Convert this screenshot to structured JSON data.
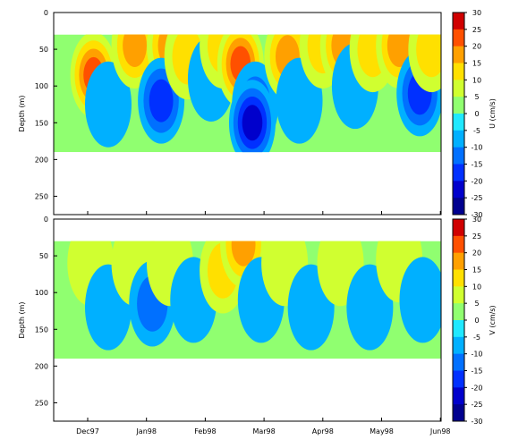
{
  "chart_data": [
    {
      "type": "heatmap",
      "panel": "top",
      "xlabel": "",
      "ylabel": "Depth (m)",
      "ylim": [
        0,
        275
      ],
      "y_reversed": true,
      "yticks": [
        "0",
        "50",
        "100",
        "150",
        "200",
        "250"
      ],
      "xticks": [
        "Dec97",
        "Jan98",
        "Feb98",
        "Mar98",
        "Apr98",
        "May98",
        "Jun98"
      ],
      "data_depth_range": [
        30,
        190
      ],
      "colorbar": {
        "label": "U (cm/s)",
        "min": -30,
        "max": 30,
        "step": 5,
        "ticks": [
          "30",
          "25",
          "20",
          "15",
          "10",
          "5",
          "0",
          "-5",
          "-10",
          "-15",
          "-20",
          "-25",
          "-30"
        ]
      },
      "features": [
        {
          "month_index": 0.1,
          "depth": 85,
          "value": 22
        },
        {
          "month_index": 0.35,
          "depth": 125,
          "value": -5
        },
        {
          "month_index": 0.8,
          "depth": 45,
          "value": 17
        },
        {
          "month_index": 1.4,
          "depth": 45,
          "value": 18
        },
        {
          "month_index": 1.25,
          "depth": 120,
          "value": -17
        },
        {
          "month_index": 1.7,
          "depth": 60,
          "value": 13
        },
        {
          "month_index": 2.1,
          "depth": 90,
          "value": -3
        },
        {
          "month_index": 2.3,
          "depth": 45,
          "value": 12
        },
        {
          "month_index": 2.6,
          "depth": 70,
          "value": 24
        },
        {
          "month_index": 2.85,
          "depth": 125,
          "value": -14
        },
        {
          "month_index": 2.8,
          "depth": 150,
          "value": -22
        },
        {
          "month_index": 3.4,
          "depth": 60,
          "value": 16
        },
        {
          "month_index": 3.6,
          "depth": 120,
          "value": -3
        },
        {
          "month_index": 4.0,
          "depth": 45,
          "value": 12
        },
        {
          "month_index": 4.35,
          "depth": 45,
          "value": 18
        },
        {
          "month_index": 4.55,
          "depth": 100,
          "value": -4
        },
        {
          "month_index": 4.85,
          "depth": 50,
          "value": 13
        },
        {
          "month_index": 5.3,
          "depth": 45,
          "value": 17
        },
        {
          "month_index": 5.65,
          "depth": 110,
          "value": -16
        },
        {
          "month_index": 5.85,
          "depth": 50,
          "value": 12
        }
      ]
    },
    {
      "type": "heatmap",
      "panel": "bottom",
      "xlabel": "",
      "ylabel": "Depth (m)",
      "ylim": [
        0,
        275
      ],
      "y_reversed": true,
      "yticks": [
        "0",
        "50",
        "100",
        "150",
        "200",
        "250"
      ],
      "xticks": [
        "Dec97",
        "Jan98",
        "Feb98",
        "Mar98",
        "Apr98",
        "May98",
        "Jun98"
      ],
      "data_depth_range": [
        30,
        190
      ],
      "colorbar": {
        "label": "V (cm/s)",
        "min": -30,
        "max": 30,
        "step": 5,
        "ticks": [
          "30",
          "25",
          "20",
          "15",
          "10",
          "5",
          "0",
          "-5",
          "-10",
          "-15",
          "-20",
          "-25",
          "-30"
        ]
      },
      "features": [
        {
          "month_index": 0.05,
          "depth": 60,
          "value": 5
        },
        {
          "month_index": 0.35,
          "depth": 120,
          "value": -6
        },
        {
          "month_index": 0.8,
          "depth": 60,
          "value": 8
        },
        {
          "month_index": 1.1,
          "depth": 115,
          "value": -12
        },
        {
          "month_index": 1.4,
          "depth": 60,
          "value": 9
        },
        {
          "month_index": 1.8,
          "depth": 110,
          "value": -5
        },
        {
          "month_index": 2.3,
          "depth": 70,
          "value": 10
        },
        {
          "month_index": 2.65,
          "depth": 35,
          "value": 18
        },
        {
          "month_index": 2.95,
          "depth": 110,
          "value": -5
        },
        {
          "month_index": 3.35,
          "depth": 60,
          "value": 8
        },
        {
          "month_index": 3.8,
          "depth": 120,
          "value": -5
        },
        {
          "month_index": 4.3,
          "depth": 60,
          "value": 9
        },
        {
          "month_index": 4.8,
          "depth": 120,
          "value": -5
        },
        {
          "month_index": 5.3,
          "depth": 55,
          "value": 9
        },
        {
          "month_index": 5.7,
          "depth": 110,
          "value": -5
        }
      ]
    }
  ]
}
